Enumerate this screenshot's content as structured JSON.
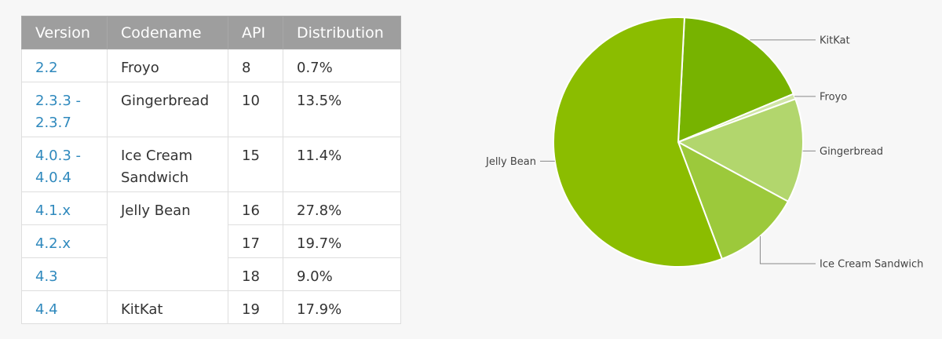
{
  "table": {
    "headers": [
      "Version",
      "Codename",
      "API",
      "Distribution"
    ],
    "rows": [
      {
        "version": "2.2",
        "codename": "Froyo",
        "api": "8",
        "dist": "0.7%"
      },
      {
        "version": "2.3.3 -\n2.3.7",
        "codename": "Gingerbread",
        "api": "10",
        "dist": "13.5%"
      },
      {
        "version": "4.0.3 -\n4.0.4",
        "codename": "Ice Cream\nSandwich",
        "api": "15",
        "dist": "11.4%"
      },
      {
        "version": "4.1.x",
        "codename": "Jelly Bean",
        "api": "16",
        "dist": "27.8%"
      },
      {
        "version": "4.2.x",
        "codename": "",
        "api": "17",
        "dist": "19.7%"
      },
      {
        "version": "4.3",
        "codename": "",
        "api": "18",
        "dist": "9.0%"
      },
      {
        "version": "4.4",
        "codename": "KitKat",
        "api": "19",
        "dist": "17.9%"
      }
    ]
  },
  "chart_data": {
    "type": "pie",
    "slices": [
      {
        "label": "KitKat",
        "value": 17.9,
        "color": "#77b300"
      },
      {
        "label": "Froyo",
        "value": 0.7,
        "color": "#d0e5a6"
      },
      {
        "label": "Gingerbread",
        "value": 13.5,
        "color": "#b2d66d"
      },
      {
        "label": "Ice Cream Sandwich",
        "value": 11.4,
        "color": "#9cc93b"
      },
      {
        "label": "Jelly Bean",
        "value": 56.5,
        "color": "#8bbd00"
      }
    ],
    "start": "top, clockwise",
    "legend": "callout labels"
  }
}
